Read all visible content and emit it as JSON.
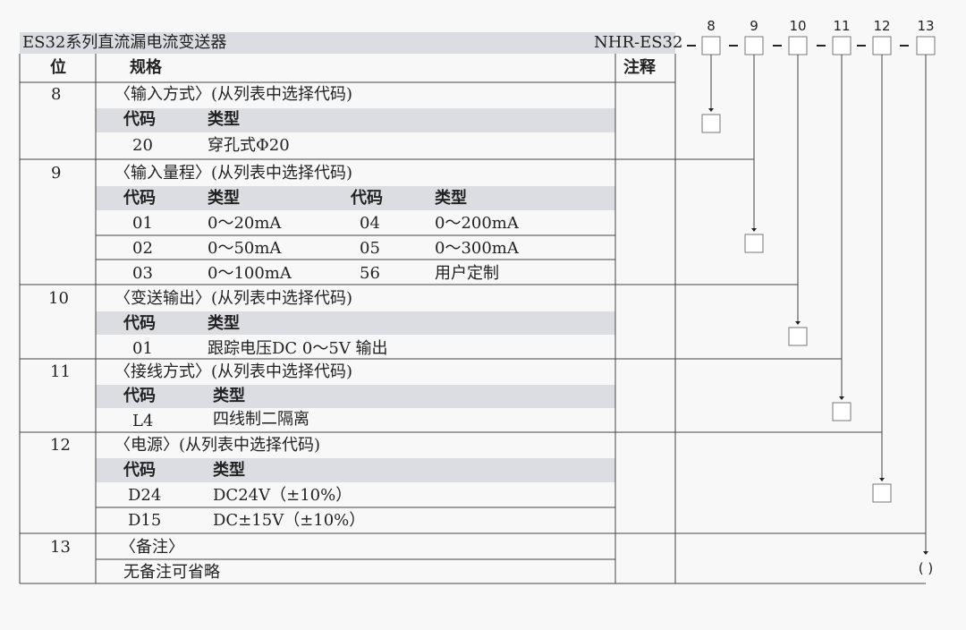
{
  "title": "ES32系列直流漏电流变送器",
  "model": "NHR-ES32",
  "headers": {
    "pos": "位",
    "spec": "规格",
    "note": "注释"
  },
  "sub_headers": {
    "code": "代码",
    "type": "类型"
  },
  "positions": [
    "8",
    "9",
    "10",
    "11",
    "12",
    "13"
  ],
  "sections": [
    {
      "pos": "8",
      "title": "〈输入方式〉(从列表中选择代码)",
      "rows": [
        [
          "20",
          "穿孔式Φ20"
        ]
      ]
    },
    {
      "pos": "9",
      "title": "〈输入量程〉(从列表中选择代码)",
      "rows": [
        [
          "01",
          "0～20mA",
          "04",
          "0～200mA"
        ],
        [
          "02",
          "0～50mA",
          "05",
          "0～300mA"
        ],
        [
          "03",
          "0～100mA",
          "56",
          "用户定制"
        ]
      ]
    },
    {
      "pos": "10",
      "title": "〈变送输出〉(从列表中选择代码)",
      "rows": [
        [
          "01",
          "跟踪电压DC 0～5V 输出"
        ]
      ]
    },
    {
      "pos": "11",
      "title": "〈接线方式〉(从列表中选择代码)",
      "rows": [
        [
          "L4",
          "四线制二隔离"
        ]
      ]
    },
    {
      "pos": "12",
      "title": "〈电源〉(从列表中选择代码)",
      "rows": [
        [
          "D24",
          "DC24V（±10%）"
        ],
        [
          "D15",
          "DC±15V（±10%）"
        ]
      ]
    },
    {
      "pos": "13",
      "title": "〈备注〉",
      "rows": [
        [
          "无备注可省略"
        ]
      ]
    }
  ],
  "remark_placeholder": "( )"
}
